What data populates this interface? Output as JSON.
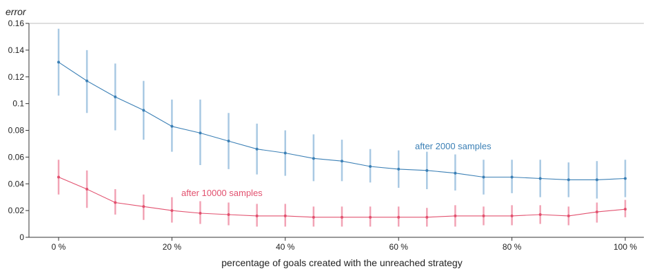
{
  "chart_data": {
    "type": "line",
    "title": "",
    "xlabel": "percentage of goals  created with the unreached strategy",
    "ylabel": "error",
    "xlim": [
      0,
      100
    ],
    "ylim": [
      0,
      0.16
    ],
    "x_ticks": [
      {
        "value": 0,
        "label": "0 %"
      },
      {
        "value": 20,
        "label": "20 %"
      },
      {
        "value": 40,
        "label": "40 %"
      },
      {
        "value": 60,
        "label": "60 %"
      },
      {
        "value": 80,
        "label": "80 %"
      },
      {
        "value": 100,
        "label": "100 %"
      }
    ],
    "y_ticks": [
      {
        "value": 0,
        "label": "0"
      },
      {
        "value": 0.02,
        "label": "0.02"
      },
      {
        "value": 0.04,
        "label": "0.04"
      },
      {
        "value": 0.06,
        "label": "0.06"
      },
      {
        "value": 0.08,
        "label": "0.08"
      },
      {
        "value": 0.1,
        "label": "0.1"
      },
      {
        "value": 0.12,
        "label": "0.12"
      },
      {
        "value": 0.14,
        "label": "0.14"
      },
      {
        "value": 0.16,
        "label": "0.16"
      }
    ],
    "x": [
      0,
      5,
      10,
      15,
      20,
      25,
      30,
      35,
      40,
      45,
      50,
      55,
      60,
      65,
      70,
      75,
      80,
      85,
      90,
      95,
      100
    ],
    "grid": false,
    "series": [
      {
        "name": "after 2000 samples",
        "color": "#3a7fb5",
        "error_color": "#a9c9e3",
        "values": [
          0.131,
          0.117,
          0.105,
          0.095,
          0.083,
          0.078,
          0.072,
          0.066,
          0.063,
          0.059,
          0.057,
          0.053,
          0.051,
          0.05,
          0.048,
          0.045,
          0.045,
          0.044,
          0.043,
          0.043,
          0.044
        ],
        "err_low": [
          0.106,
          0.093,
          0.08,
          0.073,
          0.064,
          0.054,
          0.051,
          0.047,
          0.046,
          0.042,
          0.042,
          0.041,
          0.037,
          0.036,
          0.035,
          0.032,
          0.033,
          0.03,
          0.03,
          0.029,
          0.03
        ],
        "err_high": [
          0.156,
          0.14,
          0.13,
          0.117,
          0.103,
          0.103,
          0.093,
          0.085,
          0.08,
          0.077,
          0.073,
          0.066,
          0.065,
          0.064,
          0.062,
          0.058,
          0.058,
          0.058,
          0.056,
          0.057,
          0.058
        ]
      },
      {
        "name": "after 10000 samples",
        "color": "#e2506e",
        "error_color": "#f2a3b5",
        "values": [
          0.045,
          0.036,
          0.026,
          0.023,
          0.02,
          0.018,
          0.017,
          0.016,
          0.016,
          0.015,
          0.015,
          0.015,
          0.015,
          0.015,
          0.016,
          0.016,
          0.016,
          0.017,
          0.016,
          0.019,
          0.021
        ],
        "err_low": [
          0.032,
          0.022,
          0.017,
          0.013,
          0.011,
          0.01,
          0.009,
          0.008,
          0.008,
          0.008,
          0.008,
          0.008,
          0.008,
          0.008,
          0.008,
          0.009,
          0.009,
          0.01,
          0.009,
          0.011,
          0.015
        ],
        "err_high": [
          0.058,
          0.05,
          0.036,
          0.032,
          0.03,
          0.027,
          0.026,
          0.025,
          0.025,
          0.023,
          0.023,
          0.023,
          0.023,
          0.022,
          0.024,
          0.023,
          0.024,
          0.024,
          0.023,
          0.026,
          0.028
        ]
      }
    ],
    "annotations": [
      {
        "text": "after 2000 samples",
        "series": 0
      },
      {
        "text": "after 10000 samples",
        "series": 1
      }
    ]
  }
}
